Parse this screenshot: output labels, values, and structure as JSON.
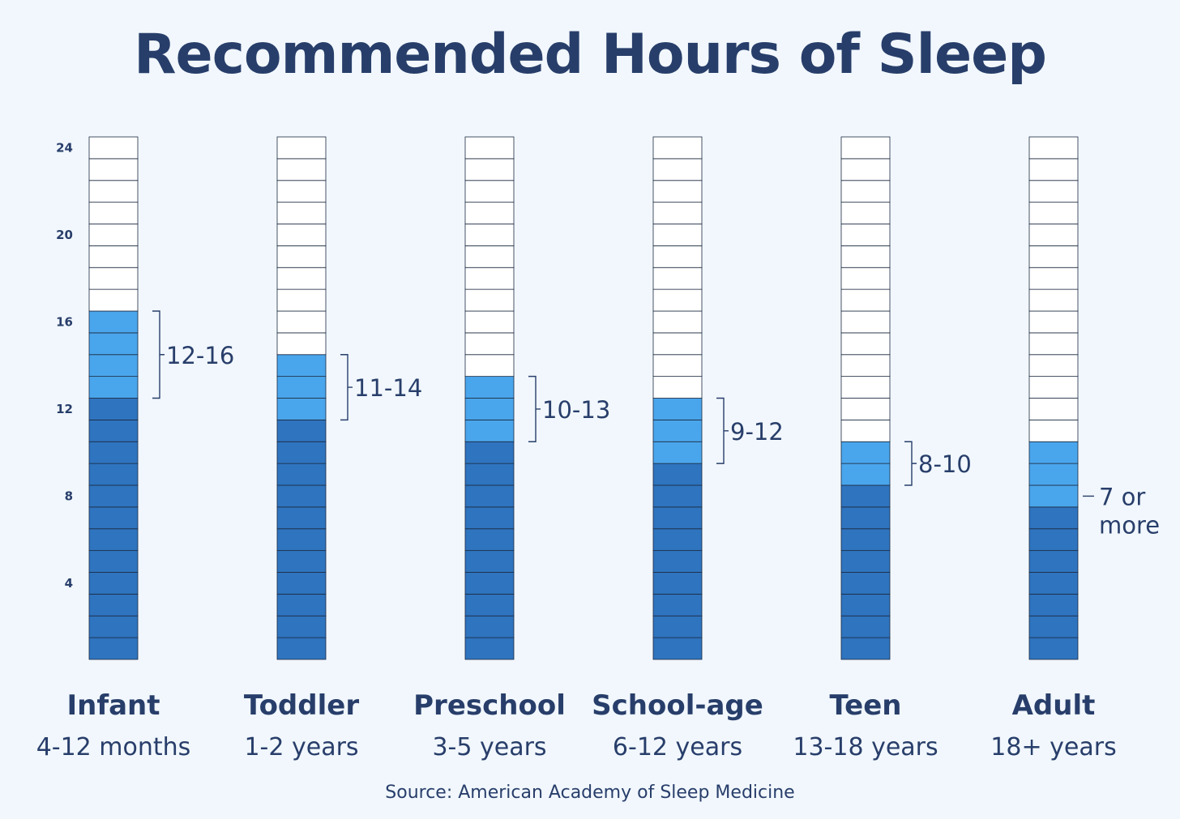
{
  "chart_data": {
    "type": "bar",
    "title": "Recommended Hours of Sleep",
    "source": "Source: American Academy of Sleep Medicine",
    "ylim": [
      0,
      24
    ],
    "y_ticks": [
      4,
      8,
      12,
      16,
      20,
      24
    ],
    "categories": [
      {
        "name": "Infant",
        "age": "4-12 months",
        "min": 12,
        "max": 16,
        "range_label": [
          "12-16"
        ]
      },
      {
        "name": "Toddler",
        "age": "1-2 years",
        "min": 11,
        "max": 14,
        "range_label": [
          "11-14"
        ]
      },
      {
        "name": "Preschool",
        "age": "3-5 years",
        "min": 10,
        "max": 13,
        "range_label": [
          "10-13"
        ]
      },
      {
        "name": "School-age",
        "age": "6-12 years",
        "min": 9,
        "max": 12,
        "range_label": [
          "9-12"
        ]
      },
      {
        "name": "Teen",
        "age": "13-18 years",
        "min": 8,
        "max": 10,
        "range_label": [
          "8-10"
        ]
      },
      {
        "name": "Adult",
        "age": "18+ years",
        "min": 7,
        "max": 10,
        "range_label": [
          "7 or",
          "more"
        ]
      }
    ],
    "colors": {
      "base": "#2f74bf",
      "range": "#4aa6ec",
      "empty": "#ffffff",
      "text": "#283e6a",
      "grid": "#1c2a40"
    }
  }
}
